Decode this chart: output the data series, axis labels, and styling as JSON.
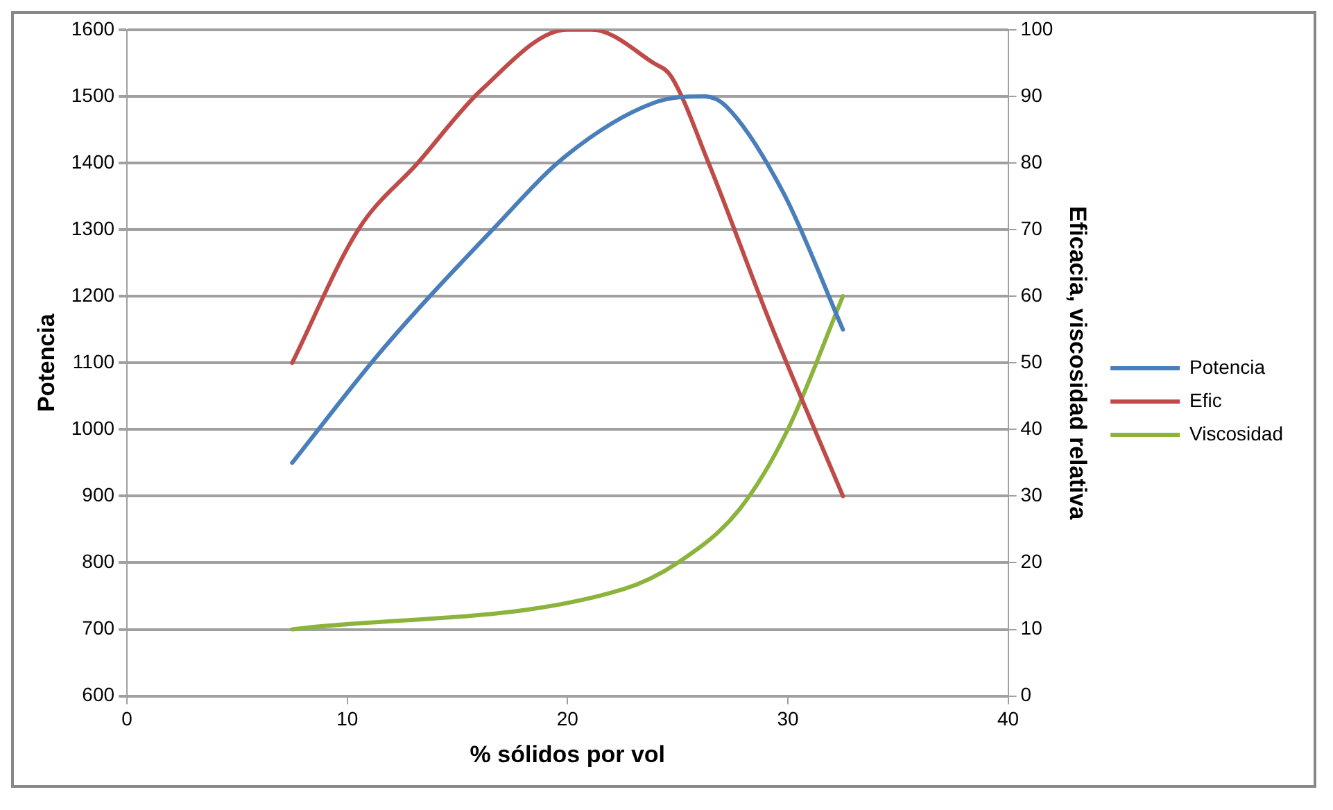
{
  "chart_data": {
    "type": "line",
    "xlabel": "% sólidos por vol",
    "ylabel": "Potencia",
    "y2label": "Eficacia, viscosidad relativa",
    "xlim": [
      0,
      40
    ],
    "xticks": [
      0,
      10,
      20,
      30,
      40
    ],
    "ylim": [
      600,
      1600
    ],
    "yticks": [
      600,
      700,
      800,
      900,
      1000,
      1100,
      1200,
      1300,
      1400,
      1500,
      1600
    ],
    "y2lim": [
      0,
      100
    ],
    "y2ticks": [
      0,
      10,
      20,
      30,
      40,
      50,
      60,
      70,
      80,
      90,
      100
    ],
    "grid": "y",
    "legend": "right",
    "marker": "none",
    "line_style": "solid",
    "series": [
      {
        "name": "Potencia",
        "color": "#4a7ebb",
        "x": [
          7.5,
          11.6,
          16.6,
          19.9,
          23.9,
          26.2,
          27.2,
          29.8,
          32.5
        ],
        "values": [
          950,
          1120,
          1300,
          1410,
          1490,
          1500,
          1485,
          1355,
          1150
        ]
      },
      {
        "name": "Efic",
        "color": "#be4b48",
        "axis": "y2",
        "x": [
          7.5,
          10.5,
          13.2,
          16.1,
          20,
          21.1,
          23.9,
          24.7,
          26.4,
          29.2,
          32.5
        ],
        "values": [
          50,
          70,
          80,
          91,
          100,
          100,
          95,
          93,
          80,
          56,
          30
        ]
      },
      {
        "name": "Viscosidad",
        "color": "#8cb43c",
        "axis": "y2",
        "x": [
          7.5,
          22.5,
          25,
          27.8,
          30,
          32.5
        ],
        "values": [
          10,
          16,
          20,
          28,
          40,
          60
        ]
      }
    ]
  }
}
